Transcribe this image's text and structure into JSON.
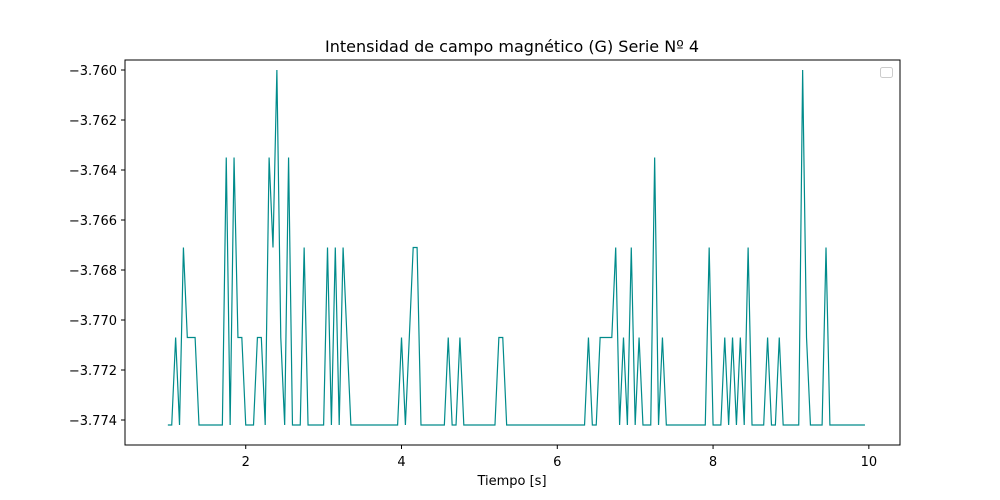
{
  "chart_data": {
    "type": "line",
    "title": "Intensidad de campo magnético (G) Serie Nº 4",
    "xlabel": "Tiempo [s]",
    "ylabel": "",
    "xlim": [
      0.45,
      10.4
    ],
    "ylim": [
      -3.775,
      -3.7596
    ],
    "xticks": [
      2,
      4,
      6,
      8,
      10
    ],
    "xtick_labels": [
      "2",
      "4",
      "6",
      "8",
      "10"
    ],
    "yticks": [
      -3.76,
      -3.762,
      -3.764,
      -3.766,
      -3.768,
      -3.77,
      -3.772,
      -3.774
    ],
    "ytick_labels": [
      "−3.760",
      "−3.762",
      "−3.764",
      "−3.766",
      "−3.768",
      "−3.770",
      "−3.772",
      "−3.774"
    ],
    "grid": false,
    "legend": "top-right",
    "color": "#008b8b",
    "series": [
      {
        "x": [
          1.0,
          1.05,
          1.1,
          1.15,
          1.2,
          1.25,
          1.3,
          1.35,
          1.4,
          1.45,
          1.5,
          1.55,
          1.6,
          1.65,
          1.7,
          1.75,
          1.8,
          1.85,
          1.9,
          1.95,
          2.0,
          2.05,
          2.1,
          2.15,
          2.2,
          2.25,
          2.3,
          2.35,
          2.4,
          2.45,
          2.5,
          2.55,
          2.6,
          2.65,
          2.7,
          2.75,
          2.8,
          2.85,
          2.9,
          2.95,
          3.0,
          3.05,
          3.1,
          3.15,
          3.2,
          3.25,
          3.3,
          3.35,
          3.4,
          3.5,
          3.6,
          3.7,
          3.8,
          3.9,
          3.95,
          4.0,
          4.05,
          4.1,
          4.15,
          4.2,
          4.25,
          4.3,
          4.4,
          4.5,
          4.55,
          4.6,
          4.65,
          4.7,
          4.75,
          4.8,
          4.9,
          5.0,
          5.1,
          5.2,
          5.25,
          5.3,
          5.35,
          5.4,
          5.5,
          5.6,
          5.8,
          6.0,
          6.2,
          6.35,
          6.4,
          6.45,
          6.5,
          6.55,
          6.6,
          6.65,
          6.7,
          6.75,
          6.8,
          6.85,
          6.9,
          6.95,
          7.0,
          7.05,
          7.1,
          7.15,
          7.2,
          7.25,
          7.3,
          7.35,
          7.4,
          7.5,
          7.6,
          7.7,
          7.8,
          7.9,
          7.95,
          8.0,
          8.05,
          8.1,
          8.15,
          8.2,
          8.25,
          8.3,
          8.35,
          8.4,
          8.45,
          8.5,
          8.55,
          8.6,
          8.65,
          8.7,
          8.75,
          8.8,
          8.85,
          8.9,
          8.95,
          9.0,
          9.05,
          9.1,
          9.15,
          9.2,
          9.25,
          9.3,
          9.35,
          9.4,
          9.45,
          9.5,
          9.6,
          9.7,
          9.8,
          9.95
        ],
        "y": [
          -3.7742,
          -3.7742,
          -3.7707,
          -3.7742,
          -3.7671,
          -3.7707,
          -3.7707,
          -3.7707,
          -3.7742,
          -3.7742,
          -3.7742,
          -3.7742,
          -3.7742,
          -3.7742,
          -3.7742,
          -3.7635,
          -3.7742,
          -3.7635,
          -3.7707,
          -3.7707,
          -3.7742,
          -3.7742,
          -3.7742,
          -3.7707,
          -3.7707,
          -3.7742,
          -3.7635,
          -3.7671,
          -3.76,
          -3.7707,
          -3.7742,
          -3.7635,
          -3.7742,
          -3.7742,
          -3.7742,
          -3.7671,
          -3.7742,
          -3.7742,
          -3.7742,
          -3.7742,
          -3.7742,
          -3.7671,
          -3.7742,
          -3.7671,
          -3.7742,
          -3.7671,
          -3.7707,
          -3.7742,
          -3.7742,
          -3.7742,
          -3.7742,
          -3.7742,
          -3.7742,
          -3.7742,
          -3.7742,
          -3.7707,
          -3.7742,
          -3.7707,
          -3.7671,
          -3.7671,
          -3.7742,
          -3.7742,
          -3.7742,
          -3.7742,
          -3.7742,
          -3.7707,
          -3.7742,
          -3.7742,
          -3.7707,
          -3.7742,
          -3.7742,
          -3.7742,
          -3.7742,
          -3.7742,
          -3.7707,
          -3.7707,
          -3.7742,
          -3.7742,
          -3.7742,
          -3.7742,
          -3.7742,
          -3.7742,
          -3.7742,
          -3.7742,
          -3.7707,
          -3.7742,
          -3.7742,
          -3.7707,
          -3.7707,
          -3.7707,
          -3.7707,
          -3.7671,
          -3.7742,
          -3.7707,
          -3.7742,
          -3.7671,
          -3.7742,
          -3.7707,
          -3.7742,
          -3.7742,
          -3.7742,
          -3.7635,
          -3.7742,
          -3.7707,
          -3.7742,
          -3.7742,
          -3.7742,
          -3.7742,
          -3.7742,
          -3.7742,
          -3.7671,
          -3.7742,
          -3.7742,
          -3.7742,
          -3.7707,
          -3.7742,
          -3.7707,
          -3.7742,
          -3.7707,
          -3.7742,
          -3.7671,
          -3.7742,
          -3.7742,
          -3.7742,
          -3.7742,
          -3.7707,
          -3.7742,
          -3.7742,
          -3.7707,
          -3.7742,
          -3.7742,
          -3.7742,
          -3.7742,
          -3.7742,
          -3.76,
          -3.7707,
          -3.7742,
          -3.7742,
          -3.7742,
          -3.7742,
          -3.7671,
          -3.7742,
          -3.7742,
          -3.7742,
          -3.7742,
          -3.7742
        ]
      }
    ]
  }
}
